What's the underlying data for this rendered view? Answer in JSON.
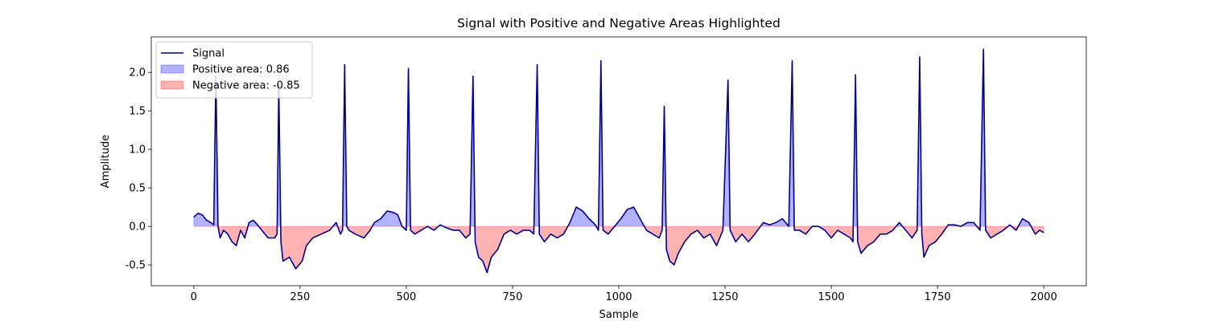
{
  "chart_data": {
    "type": "line",
    "title": "Signal with Positive and Negative Areas Highlighted",
    "x_label": "Sample",
    "y_label": "Amplitude",
    "x": [
      0,
      10,
      20,
      30,
      40,
      47,
      52,
      57,
      62,
      70,
      80,
      90,
      100,
      110,
      120,
      130,
      140,
      150,
      160,
      175,
      190,
      196,
      200,
      205,
      210,
      225,
      240,
      255,
      265,
      280,
      300,
      320,
      335,
      345,
      350,
      355,
      360,
      365,
      380,
      400,
      415,
      425,
      440,
      455,
      470,
      480,
      490,
      500,
      505,
      510,
      520,
      535,
      550,
      565,
      580,
      595,
      610,
      625,
      640,
      650,
      657,
      662,
      670,
      680,
      690,
      700,
      715,
      730,
      745,
      760,
      775,
      790,
      800,
      808,
      813,
      825,
      840,
      855,
      870,
      885,
      900,
      915,
      930,
      945,
      952,
      958,
      963,
      975,
      990,
      1005,
      1020,
      1035,
      1050,
      1065,
      1080,
      1095,
      1102,
      1107,
      1112,
      1120,
      1130,
      1140,
      1155,
      1170,
      1185,
      1200,
      1215,
      1230,
      1245,
      1257,
      1262,
      1275,
      1290,
      1305,
      1320,
      1340,
      1355,
      1370,
      1385,
      1400,
      1408,
      1413,
      1425,
      1440,
      1455,
      1470,
      1485,
      1500,
      1515,
      1530,
      1545,
      1551,
      1557,
      1562,
      1570,
      1585,
      1600,
      1615,
      1630,
      1645,
      1660,
      1675,
      1690,
      1702,
      1708,
      1713,
      1718,
      1730,
      1745,
      1760,
      1775,
      1790,
      1805,
      1820,
      1835,
      1850,
      1858,
      1863,
      1875,
      1890,
      1905,
      1920,
      1935,
      1950,
      1965,
      1980,
      1990,
      2000
    ],
    "series": [
      {
        "name": "Signal",
        "color": "#00008b",
        "values": [
          0.12,
          0.17,
          0.15,
          0.08,
          0.05,
          0.02,
          1.95,
          0.0,
          -0.15,
          -0.05,
          -0.1,
          -0.2,
          -0.25,
          -0.05,
          -0.15,
          0.05,
          0.08,
          0.02,
          -0.05,
          -0.15,
          -0.15,
          -0.1,
          1.85,
          -0.2,
          -0.45,
          -0.4,
          -0.55,
          -0.45,
          -0.25,
          -0.15,
          -0.1,
          -0.05,
          0.05,
          -0.1,
          -0.05,
          2.1,
          0.0,
          -0.05,
          -0.1,
          -0.15,
          -0.05,
          0.05,
          0.1,
          0.2,
          0.18,
          0.15,
          0.0,
          -0.05,
          2.05,
          -0.05,
          -0.1,
          -0.05,
          0.0,
          -0.05,
          0.02,
          -0.02,
          -0.05,
          -0.05,
          -0.15,
          -0.1,
          1.95,
          -0.2,
          -0.4,
          -0.45,
          -0.6,
          -0.4,
          -0.3,
          -0.1,
          -0.05,
          -0.1,
          -0.05,
          -0.05,
          -0.1,
          2.1,
          -0.1,
          -0.2,
          -0.1,
          -0.15,
          -0.1,
          0.05,
          0.25,
          0.2,
          0.1,
          0.02,
          -0.05,
          2.15,
          -0.05,
          -0.1,
          0.0,
          0.1,
          0.22,
          0.25,
          0.1,
          -0.05,
          -0.1,
          -0.15,
          -0.05,
          1.56,
          -0.3,
          -0.45,
          -0.5,
          -0.35,
          -0.2,
          -0.1,
          -0.05,
          -0.15,
          -0.1,
          -0.25,
          -0.05,
          1.9,
          -0.05,
          -0.2,
          -0.1,
          -0.2,
          -0.1,
          0.05,
          0.02,
          0.05,
          0.1,
          0.0,
          2.15,
          -0.05,
          -0.05,
          -0.1,
          0.0,
          0.0,
          -0.05,
          -0.15,
          -0.05,
          -0.1,
          -0.15,
          -0.2,
          1.97,
          -0.2,
          -0.35,
          -0.25,
          -0.2,
          -0.1,
          -0.1,
          -0.05,
          0.05,
          -0.05,
          -0.15,
          -0.05,
          2.2,
          -0.1,
          -0.4,
          -0.25,
          -0.2,
          -0.1,
          0.02,
          0.02,
          0.0,
          0.05,
          0.05,
          -0.05,
          2.3,
          -0.05,
          -0.15,
          -0.1,
          -0.05,
          0.02,
          -0.05,
          0.1,
          0.05,
          -0.1,
          -0.05,
          -0.08
        ]
      }
    ],
    "fills": [
      {
        "name": "Positive area: 0.86",
        "color": "#0000ff",
        "side": "positive"
      },
      {
        "name": "Negative area: -0.85",
        "color": "#ff0000",
        "side": "negative"
      }
    ],
    "xlim": [
      -100,
      2100
    ],
    "ylim": [
      -0.77,
      2.46
    ],
    "xticks": [
      0,
      250,
      500,
      750,
      1000,
      1250,
      1500,
      1750,
      2000
    ],
    "yticks": [
      -0.5,
      {
        "value": 0,
        "label": "0.0"
      },
      0.5,
      {
        "value": 1,
        "label": "1.0"
      },
      1.5,
      {
        "value": 2,
        "label": "2.0"
      }
    ],
    "legend": "upper left",
    "grid": false
  }
}
